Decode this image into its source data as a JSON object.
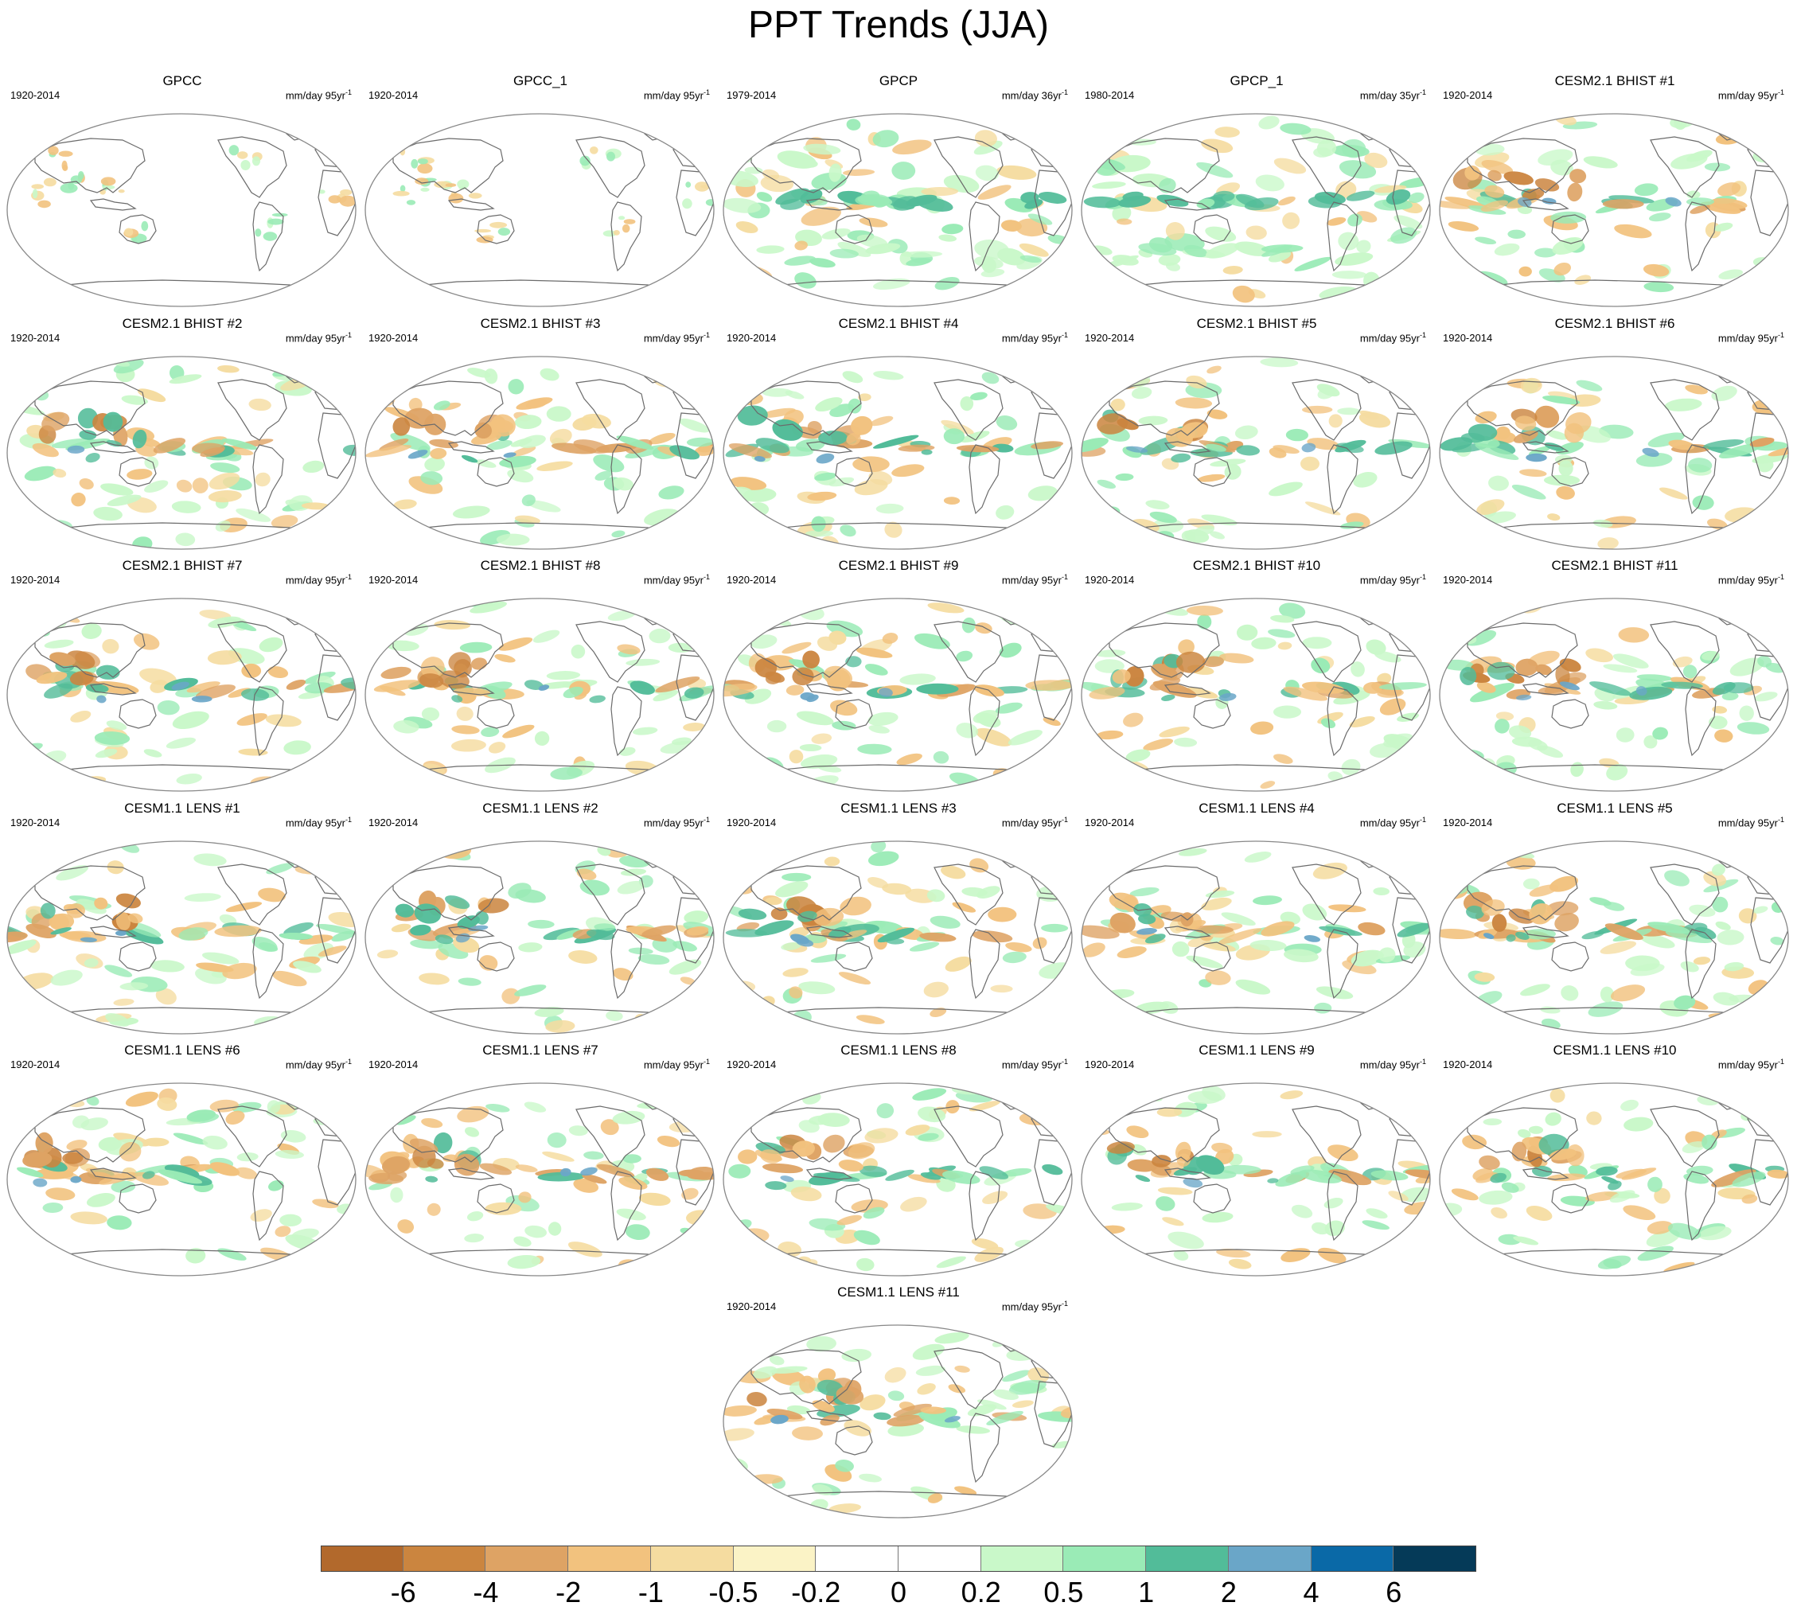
{
  "title": "PPT Trends (JJA)",
  "panels": [
    {
      "title": "GPCC",
      "period": "1920-2014",
      "units_prefix": "mm/day 95yr",
      "units_exp": "-1",
      "style": "obs_land"
    },
    {
      "title": "GPCC_1",
      "period": "1920-2014",
      "units_prefix": "mm/day 95yr",
      "units_exp": "-1",
      "style": "obs_land"
    },
    {
      "title": "GPCP",
      "period": "1979-2014",
      "units_prefix": "mm/day 36yr",
      "units_exp": "-1",
      "style": "satellite"
    },
    {
      "title": "GPCP_1",
      "period": "1980-2014",
      "units_prefix": "mm/day 35yr",
      "units_exp": "-1",
      "style": "satellite"
    },
    {
      "title": "CESM2.1 BHIST #1",
      "period": "1920-2014",
      "units_prefix": "mm/day 95yr",
      "units_exp": "-1",
      "style": "model"
    },
    {
      "title": "CESM2.1 BHIST #2",
      "period": "1920-2014",
      "units_prefix": "mm/day 95yr",
      "units_exp": "-1",
      "style": "model"
    },
    {
      "title": "CESM2.1 BHIST #3",
      "period": "1920-2014",
      "units_prefix": "mm/day 95yr",
      "units_exp": "-1",
      "style": "model"
    },
    {
      "title": "CESM2.1 BHIST #4",
      "period": "1920-2014",
      "units_prefix": "mm/day 95yr",
      "units_exp": "-1",
      "style": "model"
    },
    {
      "title": "CESM2.1 BHIST #5",
      "period": "1920-2014",
      "units_prefix": "mm/day 95yr",
      "units_exp": "-1",
      "style": "model"
    },
    {
      "title": "CESM2.1 BHIST #6",
      "period": "1920-2014",
      "units_prefix": "mm/day 95yr",
      "units_exp": "-1",
      "style": "model"
    },
    {
      "title": "CESM2.1 BHIST #7",
      "period": "1920-2014",
      "units_prefix": "mm/day 95yr",
      "units_exp": "-1",
      "style": "model"
    },
    {
      "title": "CESM2.1 BHIST #8",
      "period": "1920-2014",
      "units_prefix": "mm/day 95yr",
      "units_exp": "-1",
      "style": "model"
    },
    {
      "title": "CESM2.1 BHIST #9",
      "period": "1920-2014",
      "units_prefix": "mm/day 95yr",
      "units_exp": "-1",
      "style": "model"
    },
    {
      "title": "CESM2.1 BHIST #10",
      "period": "1920-2014",
      "units_prefix": "mm/day 95yr",
      "units_exp": "-1",
      "style": "model"
    },
    {
      "title": "CESM2.1 BHIST #11",
      "period": "1920-2014",
      "units_prefix": "mm/day 95yr",
      "units_exp": "-1",
      "style": "model"
    },
    {
      "title": "CESM1.1 LENS #1",
      "period": "1920-2014",
      "units_prefix": "mm/day 95yr",
      "units_exp": "-1",
      "style": "model"
    },
    {
      "title": "CESM1.1 LENS #2",
      "period": "1920-2014",
      "units_prefix": "mm/day 95yr",
      "units_exp": "-1",
      "style": "model"
    },
    {
      "title": "CESM1.1 LENS #3",
      "period": "1920-2014",
      "units_prefix": "mm/day 95yr",
      "units_exp": "-1",
      "style": "model"
    },
    {
      "title": "CESM1.1 LENS #4",
      "period": "1920-2014",
      "units_prefix": "mm/day 95yr",
      "units_exp": "-1",
      "style": "model"
    },
    {
      "title": "CESM1.1 LENS #5",
      "period": "1920-2014",
      "units_prefix": "mm/day 95yr",
      "units_exp": "-1",
      "style": "model"
    },
    {
      "title": "CESM1.1 LENS #6",
      "period": "1920-2014",
      "units_prefix": "mm/day 95yr",
      "units_exp": "-1",
      "style": "model"
    },
    {
      "title": "CESM1.1 LENS #7",
      "period": "1920-2014",
      "units_prefix": "mm/day 95yr",
      "units_exp": "-1",
      "style": "model"
    },
    {
      "title": "CESM1.1 LENS #8",
      "period": "1920-2014",
      "units_prefix": "mm/day 95yr",
      "units_exp": "-1",
      "style": "model"
    },
    {
      "title": "CESM1.1 LENS #9",
      "period": "1920-2014",
      "units_prefix": "mm/day 95yr",
      "units_exp": "-1",
      "style": "model"
    },
    {
      "title": "CESM1.1 LENS #10",
      "period": "1920-2014",
      "units_prefix": "mm/day 95yr",
      "units_exp": "-1",
      "style": "model"
    },
    {
      "title": "CESM1.1 LENS #11",
      "period": "1920-2014",
      "units_prefix": "mm/day 95yr",
      "units_exp": "-1",
      "style": "model"
    }
  ],
  "colorbar": {
    "colors": [
      "#b2692c",
      "#cb853f",
      "#dea364",
      "#f2c27e",
      "#f5dca0",
      "#fbf3c6",
      "#ffffff",
      "#ffffff",
      "#c9f8c9",
      "#9aebb6",
      "#52bc99",
      "#6aa6c8",
      "#0a69a7",
      "#053a58"
    ],
    "labels": [
      "-6",
      "-4",
      "-2",
      "-1",
      "-0.5",
      "-0.2",
      "0",
      "0.2",
      "0.5",
      "1",
      "2",
      "4",
      "6"
    ]
  },
  "colors": {
    "coastline": "#6b6b6b",
    "map_border": "#888888"
  }
}
